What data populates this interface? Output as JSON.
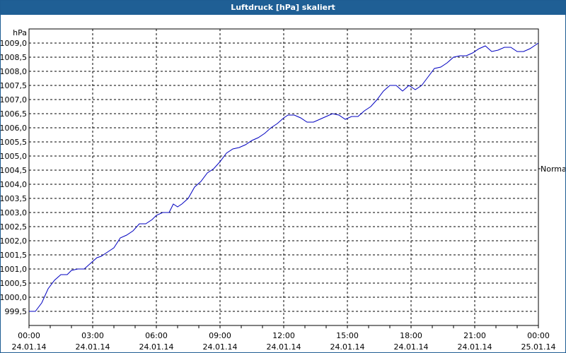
{
  "window": {
    "title": "Luftdruck [hPa] skaliert"
  },
  "chart_data": {
    "type": "line",
    "title": "Luftdruck [hPa] skaliert",
    "xlabel": "",
    "ylabel": "hPa",
    "ylim": [
      999.0,
      1009.5
    ],
    "grid": true,
    "legend_position": "right",
    "y_ticks": [
      "1009,0",
      "1008,5",
      "1008,0",
      "1007,5",
      "1007,0",
      "1006,5",
      "1006,0",
      "1005,5",
      "1005,0",
      "1004,5",
      "1004,0",
      "1003,5",
      "1003,0",
      "1002,5",
      "1002,0",
      "1001,5",
      "1001,0",
      "1000,5",
      "1000,0",
      "999,5"
    ],
    "x_ticks": [
      {
        "time": "00:00",
        "date": "24.01.14"
      },
      {
        "time": "03:00",
        "date": "24.01.14"
      },
      {
        "time": "06:00",
        "date": "24.01.14"
      },
      {
        "time": "09:00",
        "date": "24.01.14"
      },
      {
        "time": "12:00",
        "date": "24.01.14"
      },
      {
        "time": "15:00",
        "date": "24.01.14"
      },
      {
        "time": "18:00",
        "date": "24.01.14"
      },
      {
        "time": "21:00",
        "date": "24.01.14"
      },
      {
        "time": "00:00",
        "date": "25.01.14"
      }
    ],
    "series": [
      {
        "name": "Normal",
        "color": "#0000c0",
        "x_hours": [
          0,
          0.3,
          0.6,
          0.9,
          1.2,
          1.5,
          1.8,
          2.0,
          2.3,
          2.6,
          2.9,
          3.2,
          3.4,
          3.7,
          4.0,
          4.3,
          4.6,
          4.9,
          5.2,
          5.5,
          5.8,
          6.0,
          6.3,
          6.6,
          6.8,
          7.0,
          7.2,
          7.5,
          7.8,
          8.1,
          8.4,
          8.7,
          9.0,
          9.3,
          9.6,
          9.9,
          10.2,
          10.5,
          10.8,
          11.1,
          11.4,
          11.7,
          12.0,
          12.2,
          12.5,
          12.8,
          13.1,
          13.4,
          13.7,
          14.0,
          14.3,
          14.6,
          14.9,
          15.2,
          15.5,
          15.8,
          16.1,
          16.4,
          16.7,
          17.0,
          17.3,
          17.6,
          17.9,
          18.2,
          18.5,
          18.8,
          19.1,
          19.4,
          19.7,
          20.0,
          20.3,
          20.6,
          20.9,
          21.2,
          21.5,
          21.8,
          22.1,
          22.4,
          22.7,
          23.0,
          23.3,
          23.6,
          24.0
        ],
        "values": [
          999.5,
          999.5,
          999.8,
          1000.3,
          1000.6,
          1000.8,
          1000.8,
          1000.95,
          1001.0,
          1001.0,
          1001.2,
          1001.4,
          1001.45,
          1001.6,
          1001.75,
          1002.1,
          1002.2,
          1002.35,
          1002.6,
          1002.6,
          1002.75,
          1002.9,
          1003.0,
          1003.0,
          1003.3,
          1003.2,
          1003.3,
          1003.5,
          1003.9,
          1004.1,
          1004.4,
          1004.55,
          1004.8,
          1005.1,
          1005.25,
          1005.3,
          1005.4,
          1005.55,
          1005.65,
          1005.8,
          1006.0,
          1006.15,
          1006.35,
          1006.45,
          1006.45,
          1006.35,
          1006.2,
          1006.2,
          1006.3,
          1006.4,
          1006.5,
          1006.45,
          1006.3,
          1006.4,
          1006.4,
          1006.6,
          1006.75,
          1007.0,
          1007.3,
          1007.5,
          1007.5,
          1007.3,
          1007.5,
          1007.35,
          1007.5,
          1007.8,
          1008.1,
          1008.15,
          1008.3,
          1008.5,
          1008.55,
          1008.55,
          1008.65,
          1008.8,
          1008.9,
          1008.7,
          1008.75,
          1008.85,
          1008.85,
          1008.7,
          1008.7,
          1008.8,
          1009.0
        ]
      }
    ]
  }
}
